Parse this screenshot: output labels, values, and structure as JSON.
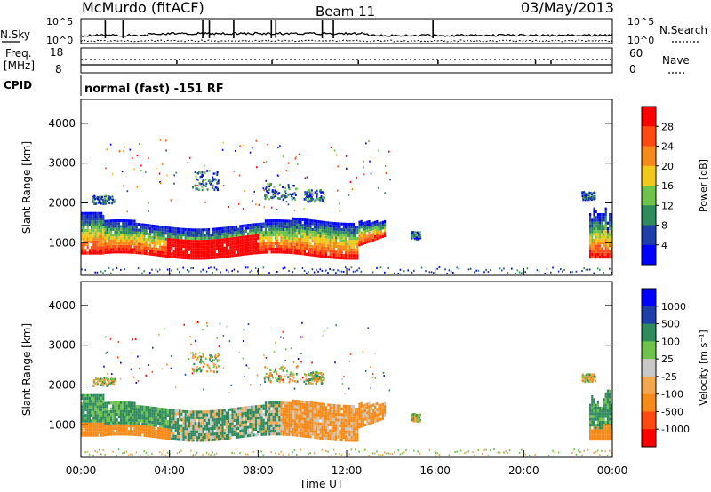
{
  "header": {
    "station": "McMurdo (fitACF)",
    "beam": "Beam 11",
    "date": "03/May/2013"
  },
  "top_panel": {
    "left_label": "N.Sky",
    "right_label": "N.Search",
    "left_ticks": [
      "10^5",
      "10^0"
    ],
    "right_ticks": [
      "10^5",
      "10^0"
    ]
  },
  "freq_panel": {
    "left_label": "Freq.",
    "left_unit": "[MHz]",
    "right_label": "Nave",
    "left_ticks": [
      "18",
      "8"
    ],
    "right_ticks": [
      "60",
      "0"
    ]
  },
  "cpid": {
    "label": "CPID",
    "text": "normal (fast) -151 RF"
  },
  "colors": {
    "power_scale": [
      "#0000ff",
      "#1f3fa8",
      "#2f8a5e",
      "#6fc24a",
      "#f2c81a",
      "#f58a1a",
      "#ff4a12",
      "#ff0000"
    ],
    "velocity_scale": [
      "#ff0000",
      "#ff4a12",
      "#f58a1a",
      "#f2a850",
      "#c8c8c8",
      "#6fc24a",
      "#2f8a5e",
      "#1f3fa8",
      "#0000ff"
    ]
  },
  "chart_data": [
    {
      "type": "heatmap",
      "title": "",
      "xlabel": "Time UT",
      "ylabel": "Slant Range [km]",
      "x_ticks": [
        "00:00",
        "04:00",
        "08:00",
        "12:00",
        "16:00",
        "20:00",
        "00:00"
      ],
      "y_ticks": [
        1000,
        2000,
        3000,
        4000
      ],
      "xlim": [
        0,
        24
      ],
      "ylim": [
        180,
        4600
      ],
      "colorbar": {
        "label": "Power [dB]",
        "ticks": [
          "4",
          "8",
          "12",
          "16",
          "20",
          "24",
          "28"
        ]
      },
      "features": [
        {
          "name": "main echo band",
          "t_start": 0.0,
          "t_end": 13.7,
          "range_min": 600,
          "range_max": 1600,
          "peak_db": 30
        },
        {
          "name": "late echo band",
          "t_start": 22.9,
          "t_end": 24.0,
          "range_min": 600,
          "range_max": 2000,
          "peak_db": 28
        }
      ]
    },
    {
      "type": "heatmap",
      "title": "",
      "xlabel": "Time UT",
      "ylabel": "Slant Range [km]",
      "x_ticks": [
        "00:00",
        "04:00",
        "08:00",
        "12:00",
        "16:00",
        "20:00",
        "00:00"
      ],
      "y_ticks": [
        1000,
        2000,
        3000,
        4000
      ],
      "xlim": [
        0,
        24
      ],
      "ylim": [
        180,
        4600
      ],
      "colorbar": {
        "label": "Velocity [m s⁻¹]",
        "ticks": [
          "1000",
          "500",
          "100",
          "25",
          "-25",
          "-100",
          "-500",
          "-1000"
        ]
      },
      "features": [
        {
          "name": "main echo band",
          "t_start": 0.0,
          "t_end": 13.7,
          "range_min": 600,
          "range_max": 1800,
          "velocity_early": 100,
          "velocity_late": -300
        },
        {
          "name": "late echo band",
          "t_start": 22.9,
          "t_end": 24.0,
          "range_min": 700,
          "range_max": 1900,
          "velocity": 100
        }
      ]
    }
  ]
}
